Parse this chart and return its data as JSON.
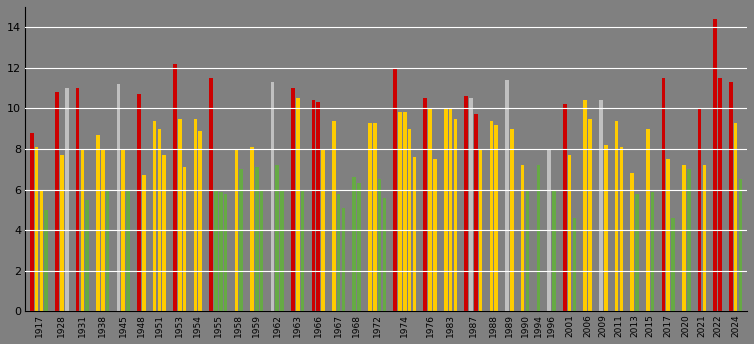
{
  "background_color": "#808080",
  "grid_color": "#ffffff",
  "ylim": [
    0,
    15
  ],
  "yticks": [
    0,
    2,
    4,
    6,
    8,
    10,
    12,
    14
  ],
  "bars": [
    {
      "label": "1917",
      "value": 8.8,
      "color": "#cc0000"
    },
    {
      "label": "1917",
      "value": 8.1,
      "color": "#ffcc00"
    },
    {
      "label": "1917",
      "value": 6.0,
      "color": "#ffcc00"
    },
    {
      "label": "1917",
      "value": 5.0,
      "color": "#66aa44"
    },
    {
      "label": "1928",
      "value": 10.8,
      "color": "#cc0000"
    },
    {
      "label": "1928",
      "value": 7.7,
      "color": "#ffcc00"
    },
    {
      "label": "1928",
      "value": 11.0,
      "color": "#c0c0c0"
    },
    {
      "label": "1931",
      "value": 11.0,
      "color": "#cc0000"
    },
    {
      "label": "1931",
      "value": 8.0,
      "color": "#ffcc00"
    },
    {
      "label": "1931",
      "value": 5.5,
      "color": "#66aa44"
    },
    {
      "label": "1938",
      "value": 8.7,
      "color": "#ffcc00"
    },
    {
      "label": "1938",
      "value": 8.0,
      "color": "#ffcc00"
    },
    {
      "label": "1938",
      "value": 6.0,
      "color": "#66aa44"
    },
    {
      "label": "1945",
      "value": 11.2,
      "color": "#c0c0c0"
    },
    {
      "label": "1945",
      "value": 8.0,
      "color": "#ffcc00"
    },
    {
      "label": "1945",
      "value": 6.0,
      "color": "#66aa44"
    },
    {
      "label": "1948",
      "value": 10.7,
      "color": "#cc0000"
    },
    {
      "label": "1948",
      "value": 6.7,
      "color": "#ffcc00"
    },
    {
      "label": "1951",
      "value": 9.4,
      "color": "#ffcc00"
    },
    {
      "label": "1951",
      "value": 9.0,
      "color": "#ffcc00"
    },
    {
      "label": "1951",
      "value": 7.7,
      "color": "#ffcc00"
    },
    {
      "label": "1953",
      "value": 12.2,
      "color": "#cc0000"
    },
    {
      "label": "1953",
      "value": 9.5,
      "color": "#ffcc00"
    },
    {
      "label": "1953",
      "value": 7.1,
      "color": "#ffcc00"
    },
    {
      "label": "1954",
      "value": 9.5,
      "color": "#ffcc00"
    },
    {
      "label": "1954",
      "value": 8.9,
      "color": "#ffcc00"
    },
    {
      "label": "1955",
      "value": 11.5,
      "color": "#cc0000"
    },
    {
      "label": "1955",
      "value": 6.0,
      "color": "#66aa44"
    },
    {
      "label": "1955",
      "value": 5.9,
      "color": "#66aa44"
    },
    {
      "label": "1955",
      "value": 5.8,
      "color": "#66aa44"
    },
    {
      "label": "1958",
      "value": 8.0,
      "color": "#ffcc00"
    },
    {
      "label": "1958",
      "value": 7.0,
      "color": "#66aa44"
    },
    {
      "label": "1959",
      "value": 8.1,
      "color": "#ffcc00"
    },
    {
      "label": "1959",
      "value": 7.1,
      "color": "#66aa44"
    },
    {
      "label": "1959",
      "value": 6.0,
      "color": "#66aa44"
    },
    {
      "label": "1962",
      "value": 11.3,
      "color": "#c0c0c0"
    },
    {
      "label": "1962",
      "value": 7.2,
      "color": "#66aa44"
    },
    {
      "label": "1962",
      "value": 6.0,
      "color": "#66aa44"
    },
    {
      "label": "1963",
      "value": 11.0,
      "color": "#cc0000"
    },
    {
      "label": "1963",
      "value": 10.5,
      "color": "#ffcc00"
    },
    {
      "label": "1963",
      "value": 6.0,
      "color": "#66aa44"
    },
    {
      "label": "1966",
      "value": 10.4,
      "color": "#cc0000"
    },
    {
      "label": "1966",
      "value": 10.3,
      "color": "#cc0000"
    },
    {
      "label": "1966",
      "value": 8.0,
      "color": "#ffcc00"
    },
    {
      "label": "1967",
      "value": 9.4,
      "color": "#ffcc00"
    },
    {
      "label": "1967",
      "value": 5.8,
      "color": "#66aa44"
    },
    {
      "label": "1967",
      "value": 5.1,
      "color": "#66aa44"
    },
    {
      "label": "1968",
      "value": 6.6,
      "color": "#66aa44"
    },
    {
      "label": "1968",
      "value": 6.3,
      "color": "#66aa44"
    },
    {
      "label": "1972",
      "value": 9.3,
      "color": "#ffcc00"
    },
    {
      "label": "1972",
      "value": 9.3,
      "color": "#ffcc00"
    },
    {
      "label": "1972",
      "value": 6.5,
      "color": "#66aa44"
    },
    {
      "label": "1972",
      "value": 5.6,
      "color": "#66aa44"
    },
    {
      "label": "1974",
      "value": 12.0,
      "color": "#cc0000"
    },
    {
      "label": "1974",
      "value": 9.8,
      "color": "#ffcc00"
    },
    {
      "label": "1974",
      "value": 9.8,
      "color": "#ffcc00"
    },
    {
      "label": "1974",
      "value": 9.0,
      "color": "#ffcc00"
    },
    {
      "label": "1974",
      "value": 7.6,
      "color": "#ffcc00"
    },
    {
      "label": "1976",
      "value": 10.5,
      "color": "#cc0000"
    },
    {
      "label": "1976",
      "value": 10.0,
      "color": "#ffcc00"
    },
    {
      "label": "1976",
      "value": 7.5,
      "color": "#ffcc00"
    },
    {
      "label": "1983",
      "value": 10.0,
      "color": "#ffcc00"
    },
    {
      "label": "1983",
      "value": 10.0,
      "color": "#ffcc00"
    },
    {
      "label": "1983",
      "value": 9.5,
      "color": "#ffcc00"
    },
    {
      "label": "1987",
      "value": 10.6,
      "color": "#cc0000"
    },
    {
      "label": "1987",
      "value": 10.5,
      "color": "#c0c0c0"
    },
    {
      "label": "1987",
      "value": 9.7,
      "color": "#cc0000"
    },
    {
      "label": "1987",
      "value": 8.0,
      "color": "#ffcc00"
    },
    {
      "label": "1988",
      "value": 9.4,
      "color": "#ffcc00"
    },
    {
      "label": "1988",
      "value": 9.2,
      "color": "#ffcc00"
    },
    {
      "label": "1989",
      "value": 11.4,
      "color": "#c0c0c0"
    },
    {
      "label": "1989",
      "value": 9.0,
      "color": "#ffcc00"
    },
    {
      "label": "1990",
      "value": 7.2,
      "color": "#ffcc00"
    },
    {
      "label": "1990",
      "value": 6.0,
      "color": "#66aa44"
    },
    {
      "label": "1994",
      "value": 7.2,
      "color": "#66aa44"
    },
    {
      "label": "1996",
      "value": 8.0,
      "color": "#c0c0c0"
    },
    {
      "label": "1996",
      "value": 6.0,
      "color": "#66aa44"
    },
    {
      "label": "2001",
      "value": 10.2,
      "color": "#cc0000"
    },
    {
      "label": "2001",
      "value": 7.7,
      "color": "#ffcc00"
    },
    {
      "label": "2001",
      "value": 4.6,
      "color": "#66aa44"
    },
    {
      "label": "2006",
      "value": 10.4,
      "color": "#ffcc00"
    },
    {
      "label": "2006",
      "value": 9.5,
      "color": "#ffcc00"
    },
    {
      "label": "2009",
      "value": 10.4,
      "color": "#c0c0c0"
    },
    {
      "label": "2009",
      "value": 8.2,
      "color": "#ffcc00"
    },
    {
      "label": "2011",
      "value": 9.4,
      "color": "#ffcc00"
    },
    {
      "label": "2011",
      "value": 8.1,
      "color": "#ffcc00"
    },
    {
      "label": "2013",
      "value": 6.8,
      "color": "#ffcc00"
    },
    {
      "label": "2013",
      "value": 5.8,
      "color": "#66aa44"
    },
    {
      "label": "2015",
      "value": 9.0,
      "color": "#ffcc00"
    },
    {
      "label": "2015",
      "value": 5.9,
      "color": "#66aa44"
    },
    {
      "label": "2017",
      "value": 11.5,
      "color": "#cc0000"
    },
    {
      "label": "2017",
      "value": 7.5,
      "color": "#ffcc00"
    },
    {
      "label": "2017",
      "value": 4.6,
      "color": "#66aa44"
    },
    {
      "label": "2020",
      "value": 7.2,
      "color": "#ffcc00"
    },
    {
      "label": "2020",
      "value": 7.0,
      "color": "#66aa44"
    },
    {
      "label": "2021",
      "value": 10.0,
      "color": "#cc0000"
    },
    {
      "label": "2021",
      "value": 7.2,
      "color": "#ffcc00"
    },
    {
      "label": "2022",
      "value": 14.4,
      "color": "#cc0000"
    },
    {
      "label": "2022",
      "value": 11.5,
      "color": "#cc0000"
    },
    {
      "label": "2024",
      "value": 11.3,
      "color": "#cc0000"
    },
    {
      "label": "2024",
      "value": 9.3,
      "color": "#ffcc00"
    },
    {
      "label": "2024",
      "value": 6.5,
      "color": "#66aa44"
    }
  ]
}
